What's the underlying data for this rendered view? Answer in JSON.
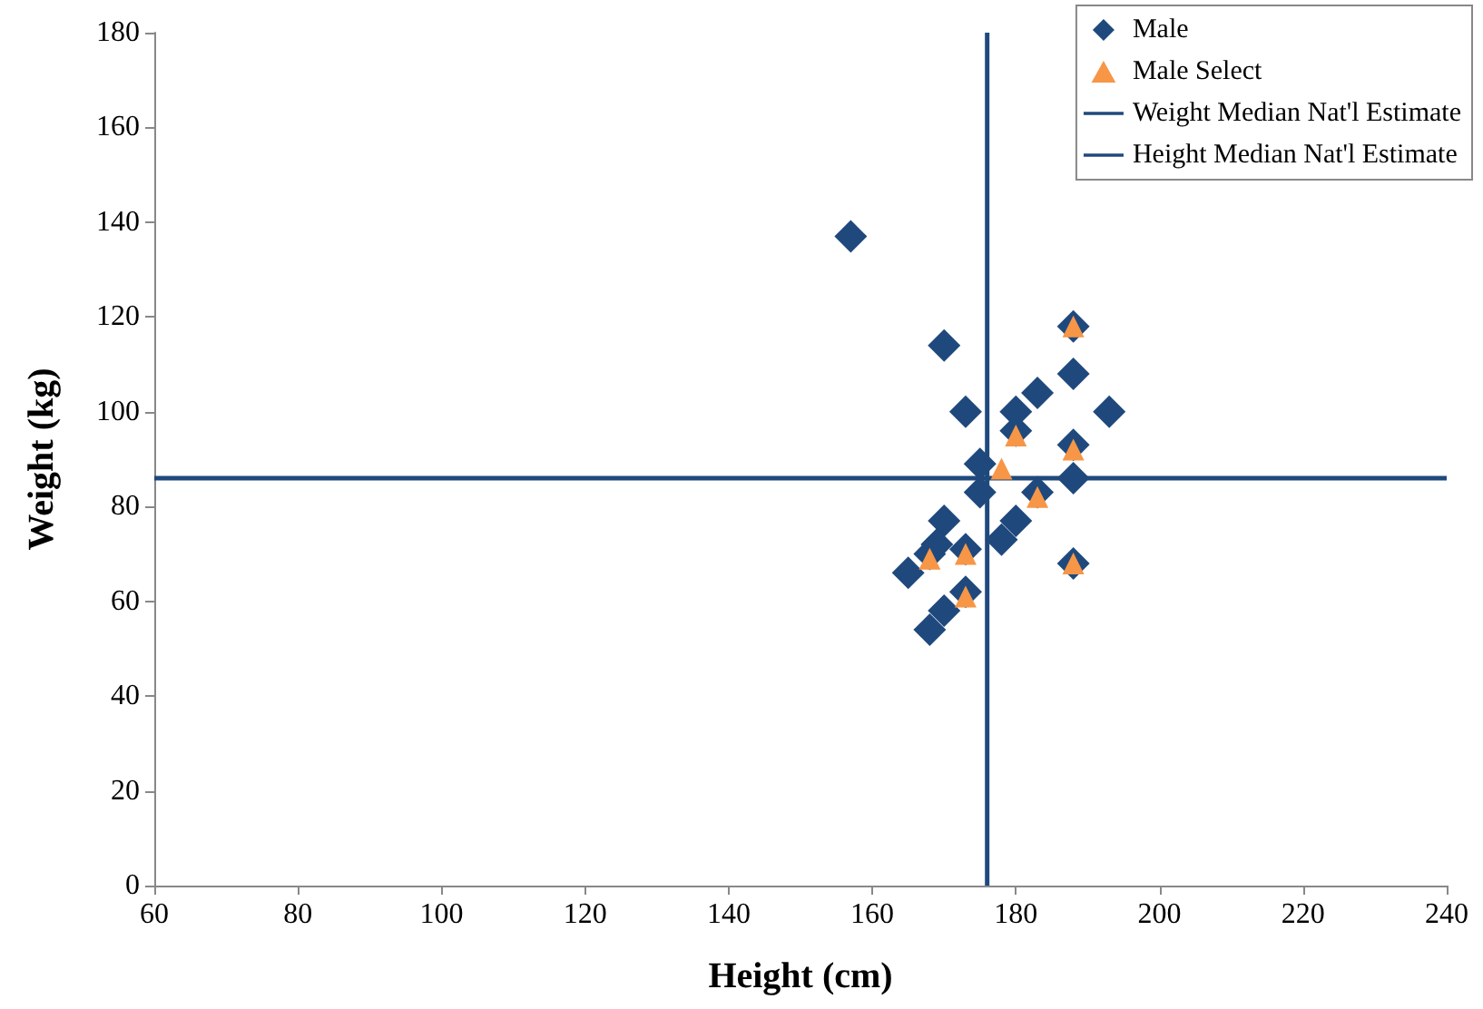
{
  "chart_data": {
    "type": "scatter",
    "xlabel": "Height (cm)",
    "ylabel": "Weight (kg)",
    "xlim": [
      60,
      240
    ],
    "xticks": [
      60,
      80,
      100,
      120,
      140,
      160,
      180,
      200,
      220,
      240
    ],
    "ylim": [
      0,
      180
    ],
    "yticks": [
      0,
      20,
      40,
      60,
      80,
      100,
      120,
      140,
      160,
      180
    ],
    "grid": false,
    "legend": "top right",
    "series": [
      {
        "name": "Male",
        "type": "scatter",
        "marker": "diamond",
        "color": "#1f497d",
        "x": [
          157,
          170,
          188,
          188,
          183,
          173,
          180,
          193,
          180,
          188,
          175,
          175,
          188,
          183,
          170,
          180,
          178,
          169,
          168,
          173,
          165,
          188,
          173,
          170,
          168
        ],
        "values": [
          137,
          114,
          118,
          108,
          104,
          100,
          100,
          100,
          96,
          93,
          89,
          83,
          86,
          83,
          77,
          77,
          73,
          72,
          70,
          71,
          66,
          68,
          62,
          58,
          54
        ]
      },
      {
        "name": "Male Select",
        "type": "scatter",
        "marker": "triangle",
        "color": "#f79646",
        "x": [
          188,
          180,
          188,
          178,
          183,
          168,
          173,
          188,
          173
        ],
        "values": [
          118,
          95,
          92,
          88,
          82,
          69,
          70,
          68,
          61
        ]
      },
      {
        "name": "Weight Median Nat'l Estimate",
        "type": "line",
        "marker": "none",
        "line_style": "solid",
        "color": "#1f497d",
        "x": [
          60,
          240
        ],
        "values": [
          86,
          86
        ]
      },
      {
        "name": "Height Median Nat'l Estimate",
        "type": "line",
        "marker": "none",
        "line_style": "solid",
        "color": "#1f497d",
        "x": [
          176,
          176
        ],
        "values": [
          0,
          180
        ]
      }
    ]
  }
}
